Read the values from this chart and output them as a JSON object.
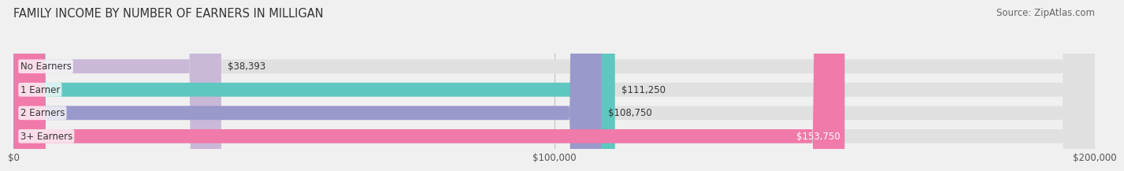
{
  "title": "FAMILY INCOME BY NUMBER OF EARNERS IN MILLIGAN",
  "source": "Source: ZipAtlas.com",
  "categories": [
    "No Earners",
    "1 Earner",
    "2 Earners",
    "3+ Earners"
  ],
  "values": [
    38393,
    111250,
    108750,
    153750
  ],
  "bar_colors": [
    "#c9b8d8",
    "#5ec8c0",
    "#9999cc",
    "#f07aaa"
  ],
  "label_colors": [
    "#333333",
    "#333333",
    "#333333",
    "#ffffff"
  ],
  "xlim": [
    0,
    200000
  ],
  "xtick_values": [
    0,
    100000,
    200000
  ],
  "xtick_labels": [
    "$0",
    "$100,000",
    "$200,000"
  ],
  "value_labels": [
    "$38,393",
    "$111,250",
    "$108,750",
    "$153,750"
  ],
  "bg_color": "#f0f0f0",
  "bar_bg_color": "#e0e0e0",
  "title_fontsize": 10.5,
  "source_fontsize": 8.5,
  "bar_height": 0.6,
  "figsize": [
    14.06,
    2.33
  ]
}
